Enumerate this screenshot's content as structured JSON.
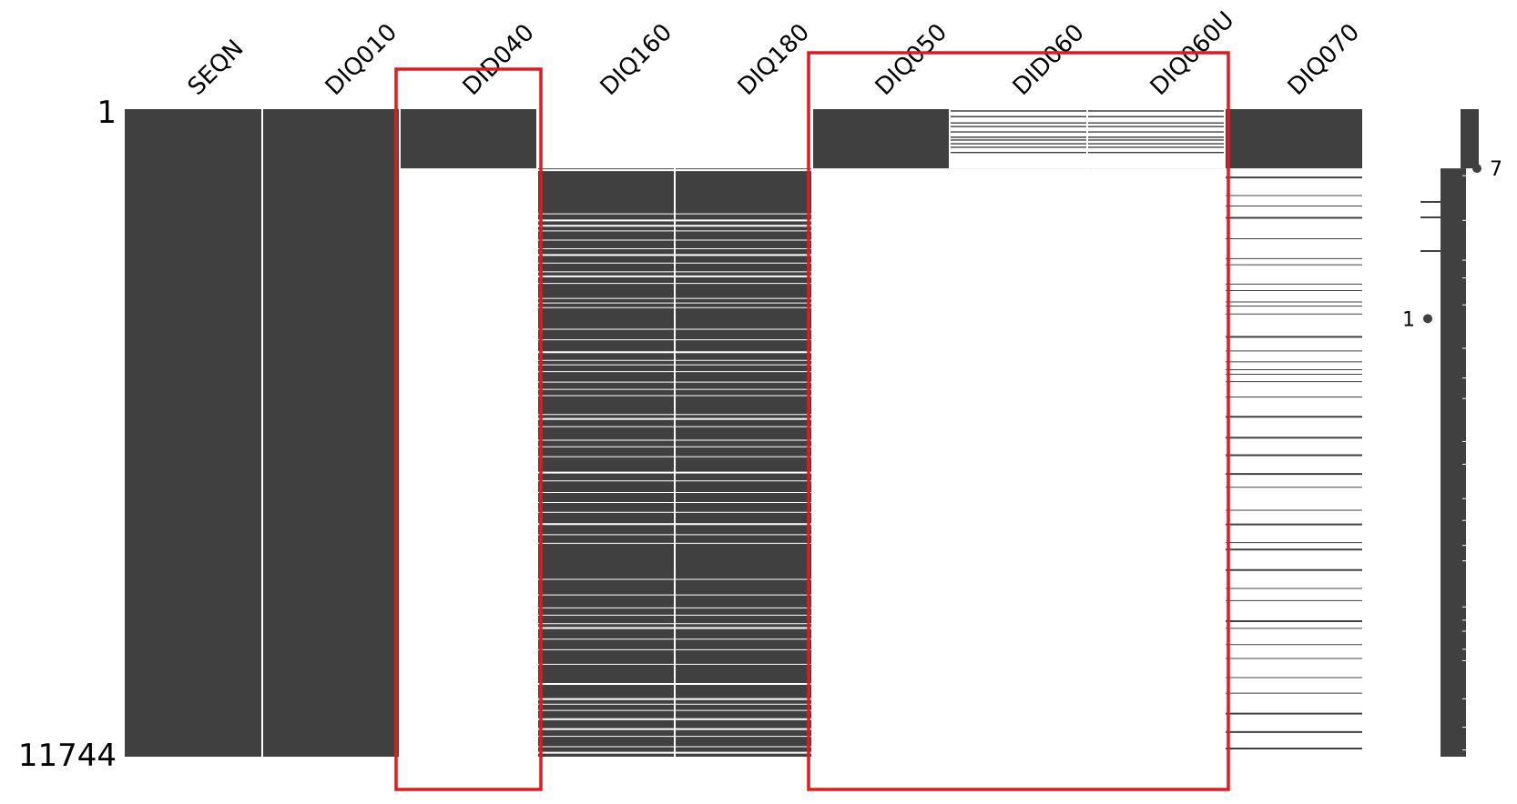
{
  "chart_data": {
    "type": "heatmap",
    "title": "",
    "columns": [
      "SEQN",
      "DIQ010",
      "DID040",
      "DIQ160",
      "DIQ180",
      "DIQ050",
      "DID060",
      "DIQ060U",
      "DIQ070"
    ],
    "row_range": [
      1,
      11744
    ],
    "row_labels": [
      "1",
      "11744"
    ],
    "present_color": "#404040",
    "missing_color": "#ffffff",
    "highlight_color": "#e31a1c",
    "columns_presence": [
      {
        "name": "SEQN",
        "complete": true,
        "present_segments": [
          [
            1,
            11744
          ]
        ]
      },
      {
        "name": "DIQ010",
        "complete": true,
        "present_segments": [
          [
            1,
            11744
          ]
        ]
      },
      {
        "name": "DID040",
        "complete": false,
        "present_segments": [
          [
            1,
            1075
          ]
        ]
      },
      {
        "name": "DIQ160",
        "complete": false,
        "pattern": "mostly_present",
        "present_segments": [
          [
            1076,
            11744
          ]
        ]
      },
      {
        "name": "DIQ180",
        "complete": false,
        "pattern": "mostly_present",
        "present_segments": [
          [
            1076,
            11744
          ]
        ]
      },
      {
        "name": "DIQ050",
        "complete": false,
        "present_segments": [
          [
            1,
            1075
          ]
        ]
      },
      {
        "name": "DID060",
        "complete": false,
        "pattern": "sparse",
        "present_segments": [
          [
            1,
            1075
          ]
        ]
      },
      {
        "name": "DIQ060U",
        "complete": false,
        "pattern": "sparse",
        "present_segments": [
          [
            1,
            1075
          ]
        ]
      },
      {
        "name": "DIQ070",
        "complete": false,
        "pattern": "sparse_after_block",
        "present_segments": [
          [
            1,
            1075
          ]
        ]
      }
    ],
    "highlight_boxes": [
      {
        "columns": [
          "DID040"
        ]
      },
      {
        "columns": [
          "DIQ050",
          "DID060",
          "DIQ060U"
        ]
      }
    ],
    "sparkline": {
      "label_max": "7",
      "label_min": "1",
      "max_row": 1075,
      "min_row": 3800
    }
  }
}
